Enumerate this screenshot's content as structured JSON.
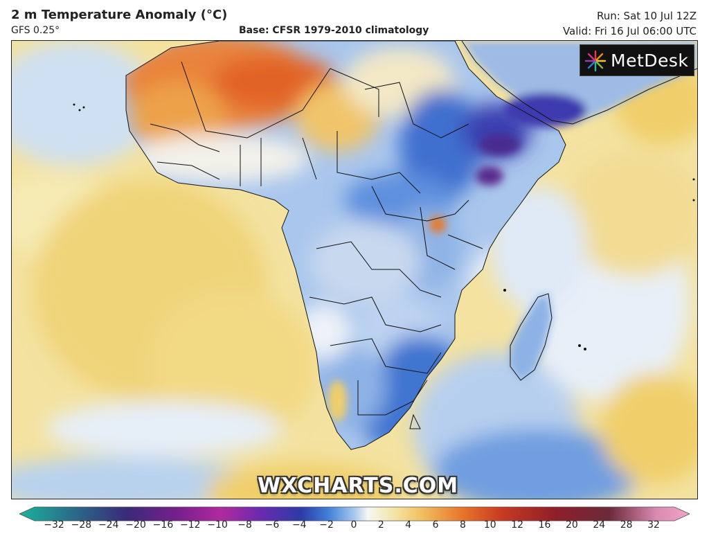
{
  "header": {
    "title": "2 m Temperature Anomaly (°C)",
    "model": "GFS 0.25°",
    "base": "Base: CFSR 1979-2010 climatology",
    "run": "Run: Sat 10 Jul 12Z",
    "valid": "Valid: Fri 16 Jul 06:00 UTC"
  },
  "logo": {
    "text": "MetDesk",
    "icon": "starburst-logo-icon"
  },
  "watermark": "WXCHARTS.COM",
  "colorbar": {
    "ticks": [
      "−32",
      "−28",
      "−24",
      "−20",
      "−16",
      "−12",
      "−10",
      "−8",
      "−6",
      "−4",
      "−2",
      "0",
      "2",
      "4",
      "6",
      "8",
      "10",
      "12",
      "16",
      "20",
      "24",
      "28",
      "32"
    ],
    "colors": {
      "extreme_cold": "#1bb39a",
      "cold": "#2d3aa8",
      "cool": "#3f7fd6",
      "neutral": "#f6f6f4",
      "warm": "#f0cf6a",
      "hot": "#e8762a",
      "extreme_hot": "#f2a6c4"
    }
  },
  "map": {
    "region": "Africa and surrounding oceans",
    "land_color_dominant": "#8fb5e6",
    "ocean_color_dominant": "#f4e4a4"
  }
}
